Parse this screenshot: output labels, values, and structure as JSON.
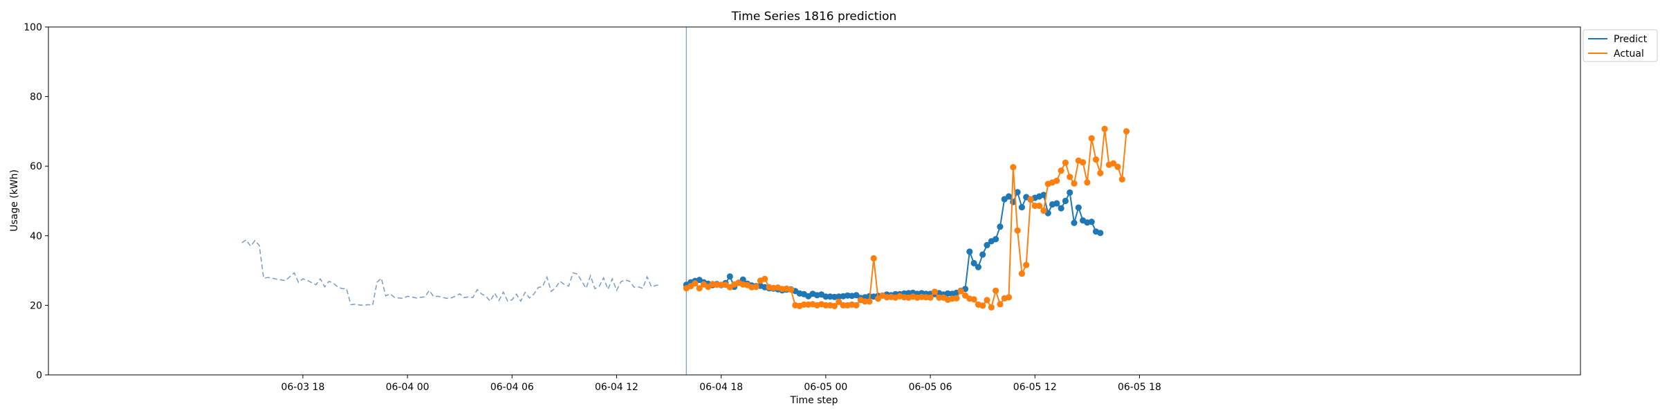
{
  "chart_data": {
    "type": "line",
    "title": "Time Series 1816 prediction",
    "xlabel": "Time step",
    "ylabel": "Usage (kWh)",
    "ylim": [
      0,
      100
    ],
    "yticks": [
      0,
      20,
      40,
      60,
      80,
      100
    ],
    "xlim": [
      -8.6,
      79.3
    ],
    "x_unit": "hours since 06-03 12:00 (x axis printed as dates)",
    "xticks": [
      {
        "t": 6,
        "label": "06-03 18"
      },
      {
        "t": 12,
        "label": "06-04 00"
      },
      {
        "t": 18,
        "label": "06-04 06"
      },
      {
        "t": 24,
        "label": "06-04 12"
      },
      {
        "t": 30,
        "label": "06-04 18"
      },
      {
        "t": 36,
        "label": "06-05 00"
      },
      {
        "t": 42,
        "label": "06-05 06"
      },
      {
        "t": 48,
        "label": "06-05 12"
      },
      {
        "t": 54,
        "label": "06-05 18"
      }
    ],
    "forecast_start": 28.0,
    "legend_position": "top-right",
    "history": {
      "color": "#7f9fc8",
      "start": 2.5,
      "step": 0.25,
      "values": [
        38,
        38.8,
        37,
        38.6,
        37.2,
        27.8,
        28,
        27.8,
        27.5,
        27.3,
        27.1,
        28.2,
        29.3,
        26.6,
        27.6,
        27.2,
        26.5,
        25.9,
        27.6,
        25.3,
        26.9,
        26.3,
        25.3,
        24.8,
        24.8,
        20.2,
        20.3,
        20.1,
        20,
        20.2,
        20,
        26.6,
        27.8,
        22.7,
        23.3,
        22.3,
        22.1,
        22,
        22.6,
        22.4,
        22.1,
        22.3,
        22.4,
        24.3,
        22.5,
        22.6,
        22.3,
        22,
        22.1,
        22.6,
        23.3,
        22.2,
        22.4,
        22.2,
        24.5,
        23.3,
        22.6,
        21.2,
        23.5,
        21.4,
        23.8,
        21.2,
        21.6,
        23.2,
        21.2,
        23.7,
        22.1,
        23.2,
        25.1,
        25.4,
        28.1,
        24,
        25.1,
        26.9,
        26,
        25.5,
        29.3,
        29,
        26.9,
        24.9,
        28.5,
        24.8,
        25.4,
        27.9,
        24.6,
        27.6,
        24.3,
        26.8,
        27.3,
        26.9,
        25.2,
        25.3,
        24.9,
        28.2,
        25.3,
        25.7,
        25.9
      ]
    },
    "series": [
      {
        "name": "Predict",
        "color": "#1f77b4",
        "start": 28.0,
        "step": 0.25,
        "values": [
          25.9,
          26.6,
          27,
          27.3,
          26.6,
          26.2,
          25.8,
          26.1,
          25.8,
          26.4,
          28.3,
          25.3,
          26.5,
          27.4,
          26.2,
          25.7,
          25.5,
          25.6,
          25.2,
          24.9,
          24.8,
          24.6,
          24.3,
          24.5,
          24.6,
          24.1,
          23.4,
          23.2,
          22.6,
          23.3,
          22.9,
          23.1,
          22.5,
          22.5,
          22.4,
          22.5,
          22.6,
          22.8,
          22.7,
          22.9,
          22.1,
          22.3,
          22.6,
          22.5,
          22.7,
          22.8,
          23.1,
          22.9,
          23.2,
          23.2,
          23.4,
          23.5,
          23.6,
          23.3,
          23.5,
          23.3,
          23.3,
          23.2,
          23.5,
          23.1,
          23.4,
          23.3,
          23.6,
          24.2,
          24.7,
          35.4,
          32.1,
          31,
          34.6,
          37.3,
          38.4,
          39,
          42.6,
          50.5,
          51.3,
          49.7,
          52.5,
          48.2,
          51.1,
          50.4,
          50.9,
          51.3,
          51.7,
          46.5,
          49,
          49.3,
          47.9,
          50,
          52.4,
          43.7,
          48.1,
          44.4,
          43.8,
          44,
          41.2,
          40.8
        ]
      },
      {
        "name": "Actual",
        "color": "#ff7f0e",
        "start": 28.0,
        "step": 0.25,
        "values": [
          24.9,
          25.5,
          26.3,
          24.9,
          26,
          25.3,
          26.1,
          25.9,
          25.9,
          25.9,
          25.2,
          26,
          26.5,
          26,
          25.8,
          25.2,
          25.3,
          27.1,
          27.6,
          25.2,
          25,
          25.1,
          24.7,
          24.8,
          24.5,
          20,
          19.8,
          20.2,
          20.2,
          20.3,
          20,
          20.3,
          20,
          20,
          19.8,
          21,
          20,
          20,
          20.2,
          20,
          21.5,
          21.1,
          21.1,
          33.5,
          21.9,
          22.8,
          22.3,
          22.4,
          22.2,
          22.6,
          22.3,
          22.2,
          22.5,
          22.2,
          22.4,
          22.3,
          22.2,
          23.9,
          22.2,
          22.2,
          21.6,
          21.9,
          22,
          24.1,
          22.8,
          21.9,
          21.7,
          20.2,
          19.9,
          21.5,
          19.4,
          24.2,
          20.3,
          22,
          22.3,
          59.7,
          41.5,
          29.1,
          31.6,
          50.5,
          48.6,
          48.6,
          47.2,
          54.9,
          55.3,
          55.8,
          58.7,
          61,
          56.9,
          55,
          61.6,
          61.1,
          55.3,
          68,
          61.9,
          58,
          70.7,
          60.4,
          60.8,
          59.8,
          56.2,
          70
        ]
      }
    ]
  }
}
